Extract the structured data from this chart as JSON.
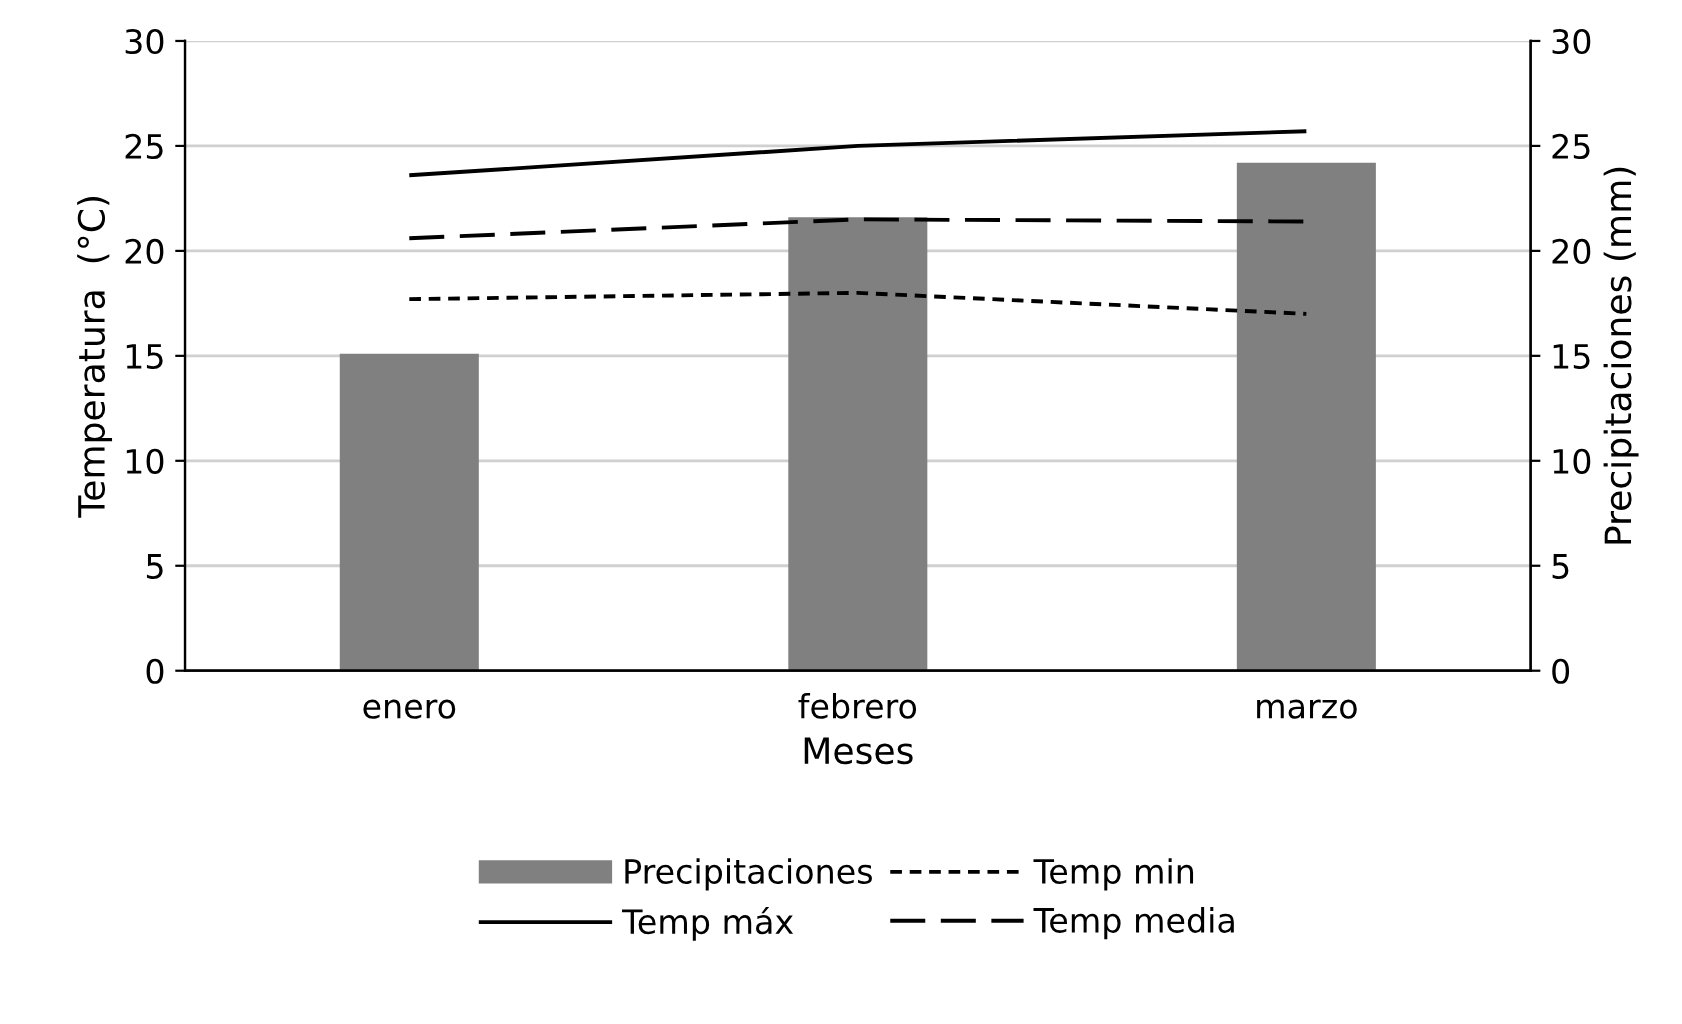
{
  "chart_data": {
    "type": "line",
    "xlabel": "Meses",
    "ylabel": "Temperatura  (°C)",
    "y2label": "Precipitaciones (mm)",
    "categories": [
      "enero",
      "febrero",
      "marzo"
    ],
    "series": [
      {
        "name": "Precipitaciones",
        "type": "bar",
        "axis": "y2",
        "color": "#808080",
        "values": [
          15.1,
          21.6,
          24.2
        ]
      },
      {
        "name": "Temp min",
        "color": "#000000",
        "line_style": "dotted",
        "values": [
          17.7,
          18.0,
          17.0
        ]
      },
      {
        "name": "Temp máx",
        "color": "#000000",
        "line_style": "solid",
        "values": [
          23.6,
          25.0,
          25.7
        ]
      },
      {
        "name": "Temp media",
        "color": "#000000",
        "line_style": "dashed",
        "values": [
          20.6,
          21.5,
          21.4
        ]
      }
    ],
    "ylim": [
      0,
      30
    ],
    "yticks": [
      0,
      5,
      10,
      15,
      20,
      25,
      30
    ],
    "y2lim": [
      0,
      30
    ],
    "y2ticks": [
      0,
      5,
      10,
      15,
      20,
      25,
      30
    ],
    "grid": "y",
    "legend": "bottom",
    "marker": "none"
  }
}
